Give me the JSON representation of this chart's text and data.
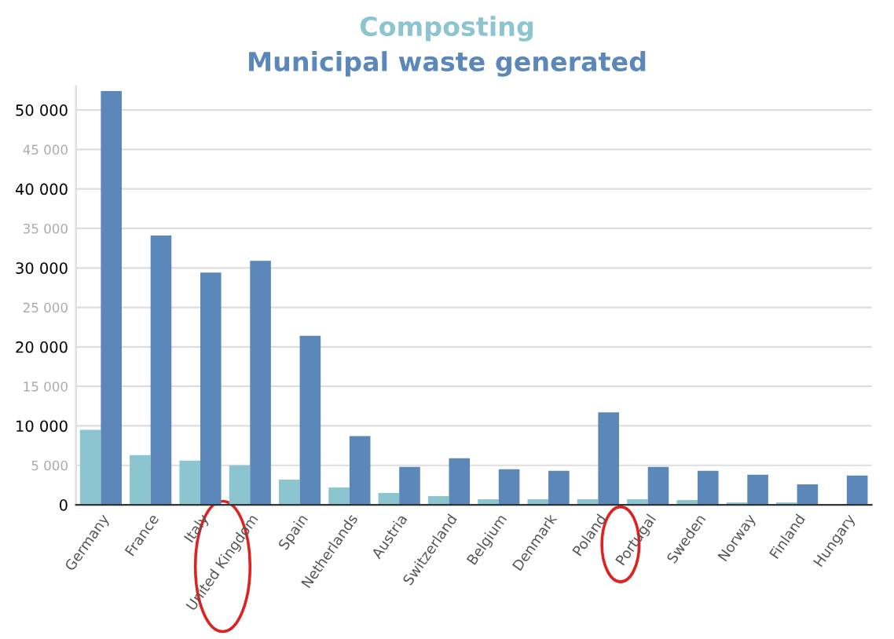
{
  "chart_data": {
    "type": "bar",
    "categories": [
      "Germany",
      "France",
      "Italy",
      "United Kingdom",
      "Spain",
      "Netherlands",
      "Austria",
      "Switzerland",
      "Belgium",
      "Denmark",
      "Poland",
      "Portugal",
      "Sweden",
      "Norway",
      "Finland",
      "Hungary"
    ],
    "series": [
      {
        "name": "Composting",
        "color": "#8cc5cf",
        "values": [
          9500,
          6300,
          5600,
          5000,
          3200,
          2200,
          1500,
          1100,
          700,
          700,
          700,
          700,
          600,
          300,
          300,
          null
        ]
      },
      {
        "name": "Municipal waste generated",
        "color": "#5b87b9",
        "values": [
          52400,
          34100,
          29400,
          30900,
          21400,
          8700,
          4800,
          5900,
          4500,
          4300,
          11700,
          4800,
          4300,
          3800,
          2600,
          3700
        ]
      }
    ],
    "ylim": [
      0,
      53000
    ],
    "yticks": [
      0,
      {
        "value": 5000,
        "label": "5 000"
      },
      {
        "value": 10000,
        "label": "10 000"
      },
      {
        "value": 15000,
        "label": "15 000"
      },
      {
        "value": 20000,
        "label": "20 000"
      },
      {
        "value": 25000,
        "label": "25 000"
      },
      {
        "value": 30000,
        "label": "30 000"
      },
      {
        "value": 35000,
        "label": "35 000"
      },
      {
        "value": 40000,
        "label": "40 000"
      },
      {
        "value": 45000,
        "label": "45 000"
      },
      {
        "value": 50000,
        "label": "50 000"
      }
    ],
    "grid": "y",
    "legend": false
  }
}
